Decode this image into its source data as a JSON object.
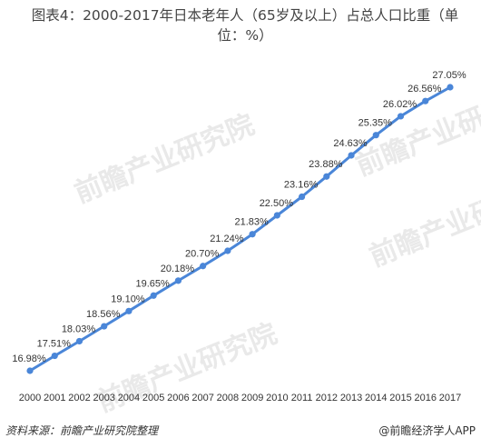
{
  "title": "图表4：2000-2017年日本老年人（65岁及以上）占总人口比重（单位：%）",
  "source": "资料来源：前瞻产业研究院整理",
  "brand": "@前瞻经济学人APP",
  "watermark": "前瞻产业研究院",
  "colors": {
    "line": "#4a86d8",
    "text": "#333333"
  },
  "chart_data": {
    "type": "line",
    "title": "图表4：2000-2017年日本老年人（65岁及以上）占总人口比重（单位：%）",
    "xlabel": "",
    "ylabel": "",
    "categories": [
      "2000",
      "2001",
      "2002",
      "2003",
      "2004",
      "2005",
      "2006",
      "2007",
      "2008",
      "2009",
      "2010",
      "2011",
      "2012",
      "2013",
      "2014",
      "2015",
      "2016",
      "2017"
    ],
    "series": [
      {
        "values": [
          16.98,
          17.51,
          18.03,
          18.56,
          19.1,
          19.65,
          20.18,
          20.7,
          21.24,
          21.83,
          22.5,
          23.16,
          23.88,
          24.63,
          25.35,
          26.02,
          26.56,
          27.05
        ]
      }
    ],
    "data_labels": [
      "16.98%",
      "17.51%",
      "18.03%",
      "18.56%",
      "19.10%",
      "19.65%",
      "20.18%",
      "20.70%",
      "21.24%",
      "21.83%",
      "22.50%",
      "23.16%",
      "23.88%",
      "24.63%",
      "25.35%",
      "26.02%",
      "26.56%",
      "27.05%"
    ],
    "grid": false,
    "y_axis_visible": false
  }
}
